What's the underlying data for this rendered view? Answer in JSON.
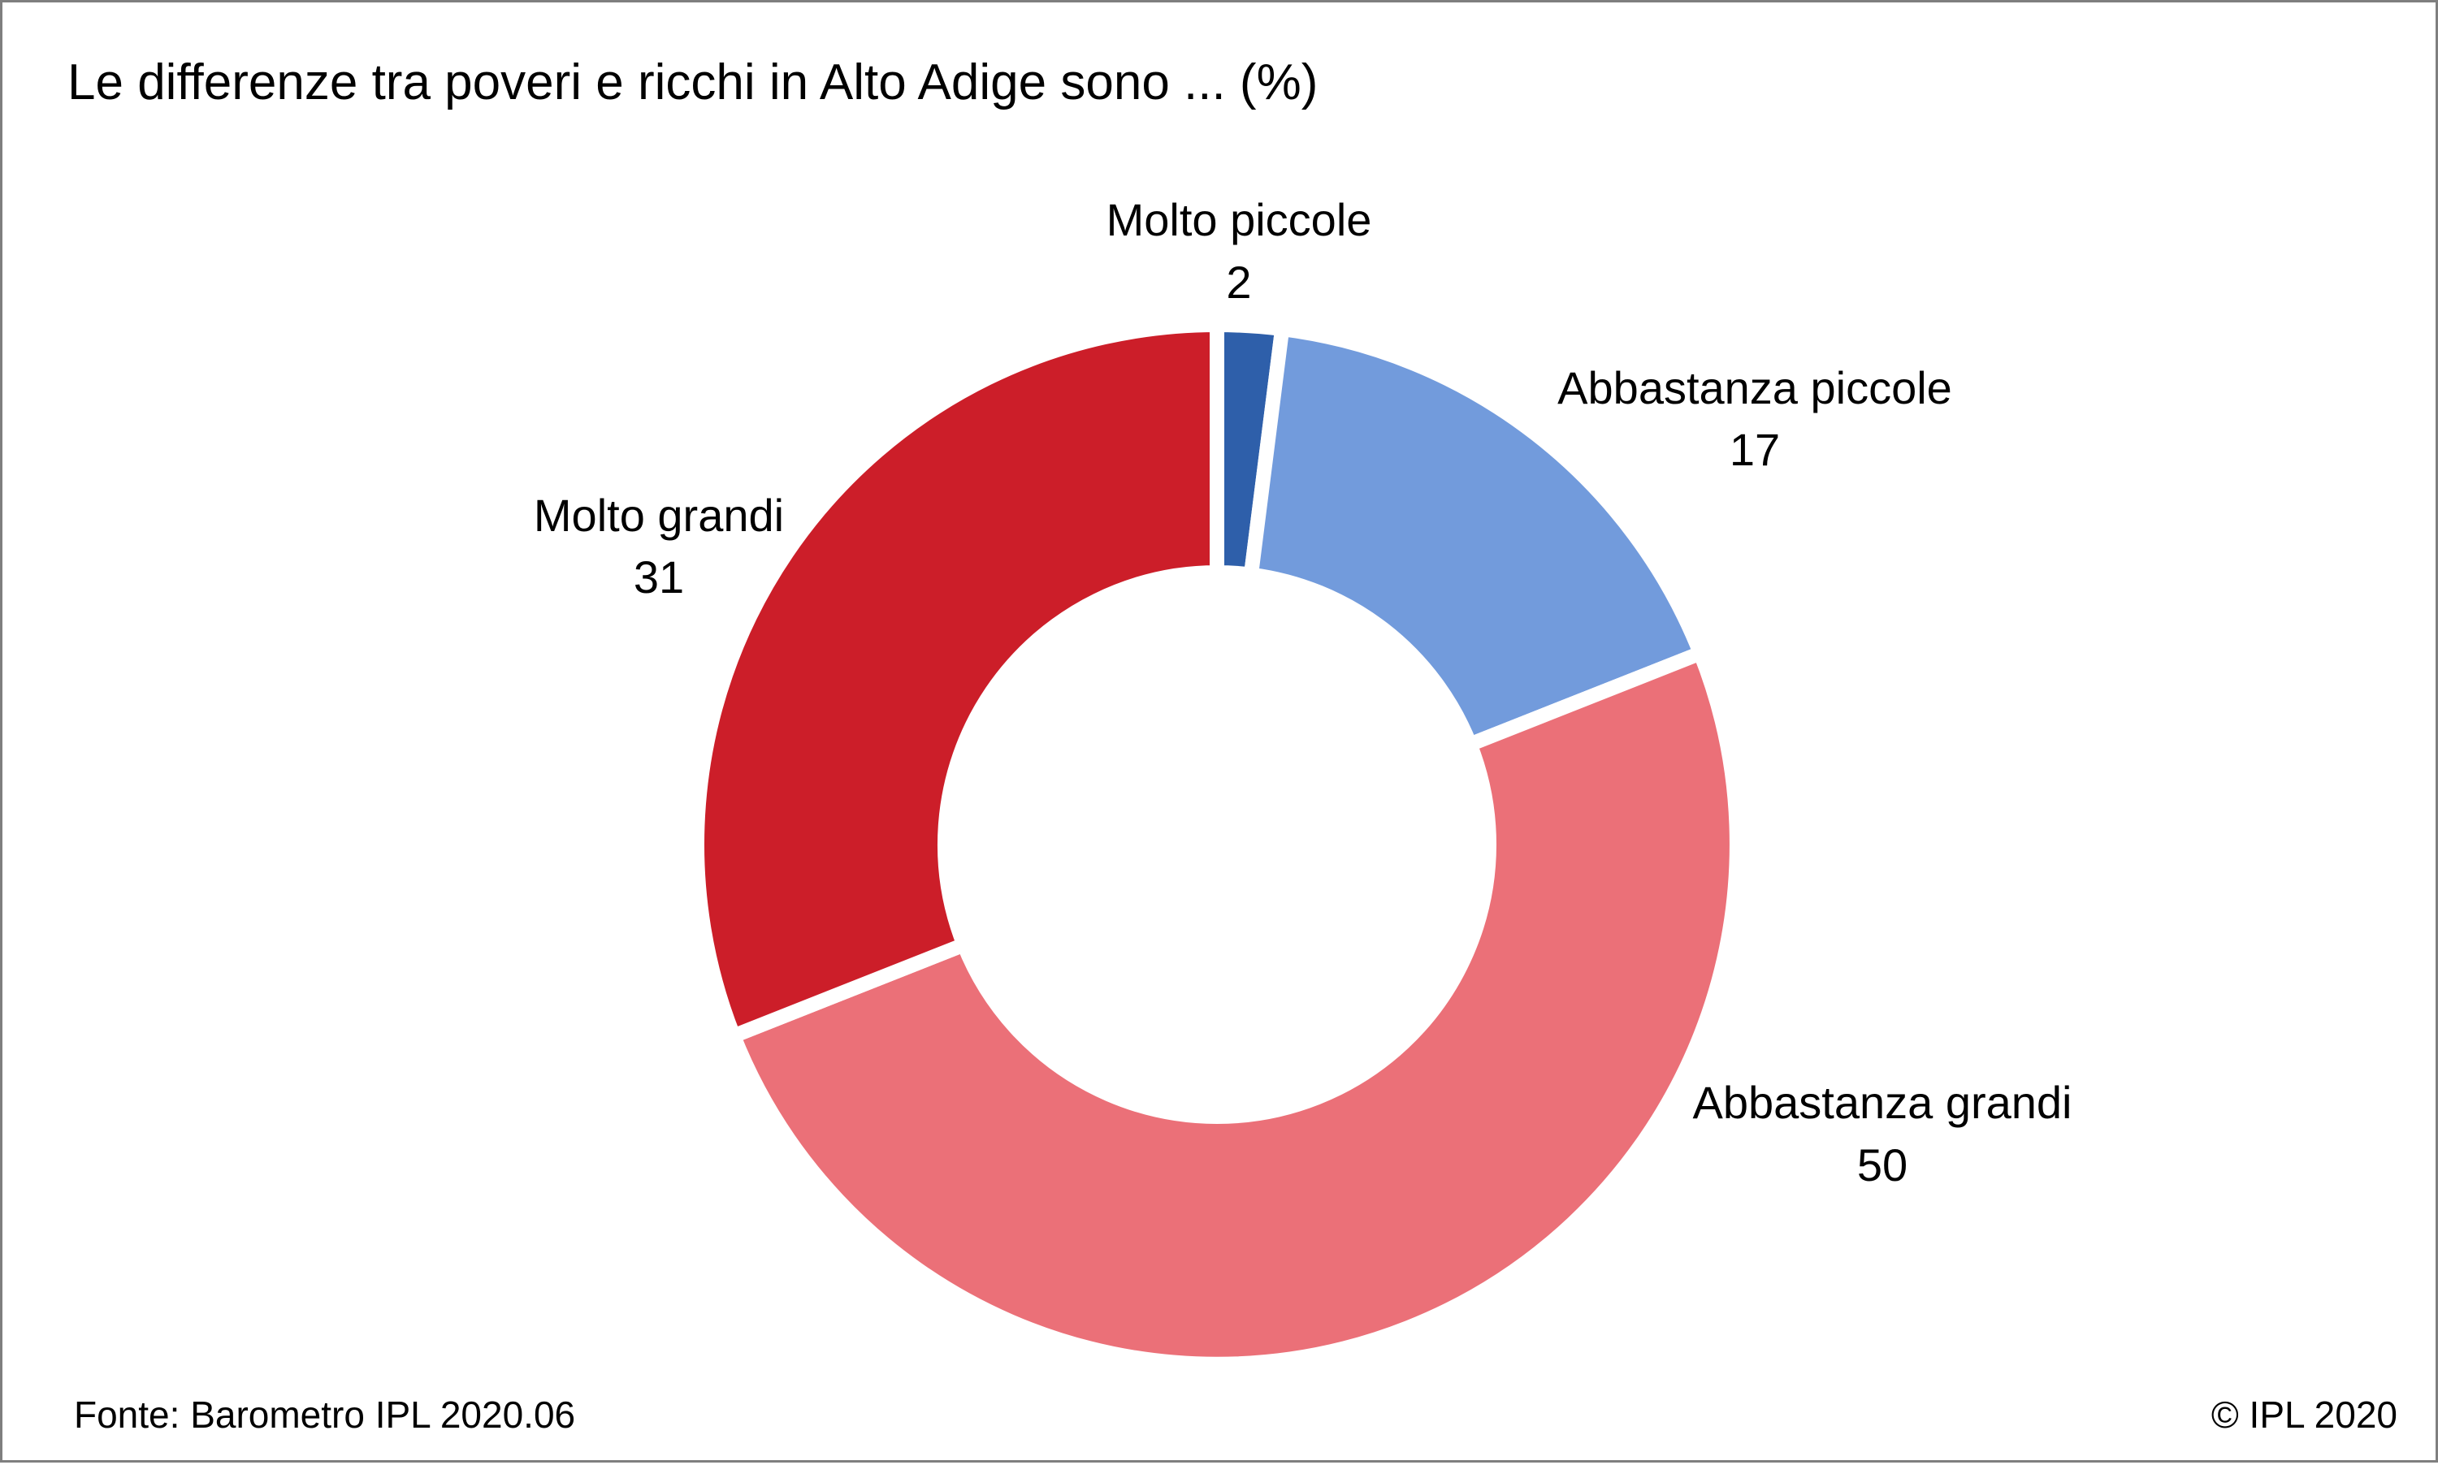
{
  "chart_data": {
    "type": "pie",
    "donut": true,
    "title": "Le differenze tra poveri e ricchi in Alto Adige sono ... (%)",
    "categories": [
      "Molto piccole",
      "Abbastanza piccole",
      "Abbastanza grandi",
      "Molto grandi"
    ],
    "values": [
      2,
      17,
      50,
      31
    ],
    "colors": [
      "#2E5FAA",
      "#729BDC",
      "#EB7078",
      "#CC1E29"
    ],
    "start": "top",
    "direction": "clockwise",
    "legend": "none"
  },
  "footer": {
    "source": "Fonte: Barometro IPL 2020.06",
    "copyright": "© IPL 2020"
  }
}
